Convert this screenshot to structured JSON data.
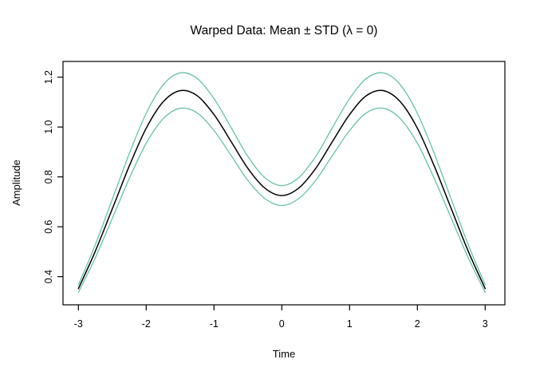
{
  "title": "Warped Data: Mean ± STD (λ = 0)",
  "x_axis_label": "Time",
  "y_axis_label": "Amplitude",
  "colors": {
    "mean_line": "#000000",
    "std_band_line": "#66C2A5",
    "frame": "#000000",
    "background": "#FFFFFF",
    "text": "#000000"
  },
  "chart_data": {
    "type": "line",
    "title": "Warped Data: Mean ± STD (λ = 0)",
    "xlabel": "Time",
    "ylabel": "Amplitude",
    "legend": "none",
    "grid": false,
    "box": true,
    "tick_direction": "out",
    "xlim": [
      -3.227,
      3.291
    ],
    "ylim": [
      0.287,
      1.263
    ],
    "x_ticks": [
      -3,
      -2,
      -1,
      0,
      1,
      2,
      3
    ],
    "x_tick_labels": [
      "-3",
      "-2",
      "-1",
      "0",
      "1",
      "2",
      "3"
    ],
    "y_ticks": [
      0.4,
      0.6,
      0.8,
      1.0,
      1.2
    ],
    "y_tick_labels": [
      "0.4",
      "0.6",
      "0.8",
      "1.0",
      "1.2"
    ],
    "x": [
      -3,
      -2.75,
      -2.5,
      -2.25,
      -2,
      -1.75,
      -1.5,
      -1.25,
      -1,
      -0.75,
      -0.5,
      -0.25,
      0,
      0.25,
      0.5,
      0.75,
      1,
      1.25,
      1.5,
      1.75,
      2,
      2.25,
      2.5,
      2.75,
      3
    ],
    "series": [
      {
        "name": "mean",
        "color": "#000000",
        "width": 1.5,
        "values": [
          0.352,
          0.502,
          0.672,
          0.843,
          0.995,
          1.101,
          1.146,
          1.126,
          1.05,
          0.943,
          0.834,
          0.755,
          0.725,
          0.755,
          0.834,
          0.943,
          1.05,
          1.126,
          1.146,
          1.101,
          0.995,
          0.843,
          0.672,
          0.502,
          0.352
        ]
      },
      {
        "name": "mean_plus_std",
        "color": "#66C2A5",
        "width": 1.3,
        "values": [
          0.367,
          0.528,
          0.71,
          0.893,
          1.055,
          1.169,
          1.217,
          1.195,
          1.114,
          0.999,
          0.882,
          0.797,
          0.765,
          0.797,
          0.882,
          0.999,
          1.114,
          1.195,
          1.217,
          1.169,
          1.055,
          0.893,
          0.71,
          0.528,
          0.367
        ]
      },
      {
        "name": "mean_minus_std",
        "color": "#66C2A5",
        "width": 1.3,
        "values": [
          0.337,
          0.476,
          0.634,
          0.793,
          0.935,
          1.033,
          1.075,
          1.057,
          0.986,
          0.887,
          0.786,
          0.713,
          0.685,
          0.713,
          0.786,
          0.887,
          0.986,
          1.057,
          1.075,
          1.033,
          0.935,
          0.793,
          0.634,
          0.476,
          0.337
        ]
      }
    ]
  }
}
